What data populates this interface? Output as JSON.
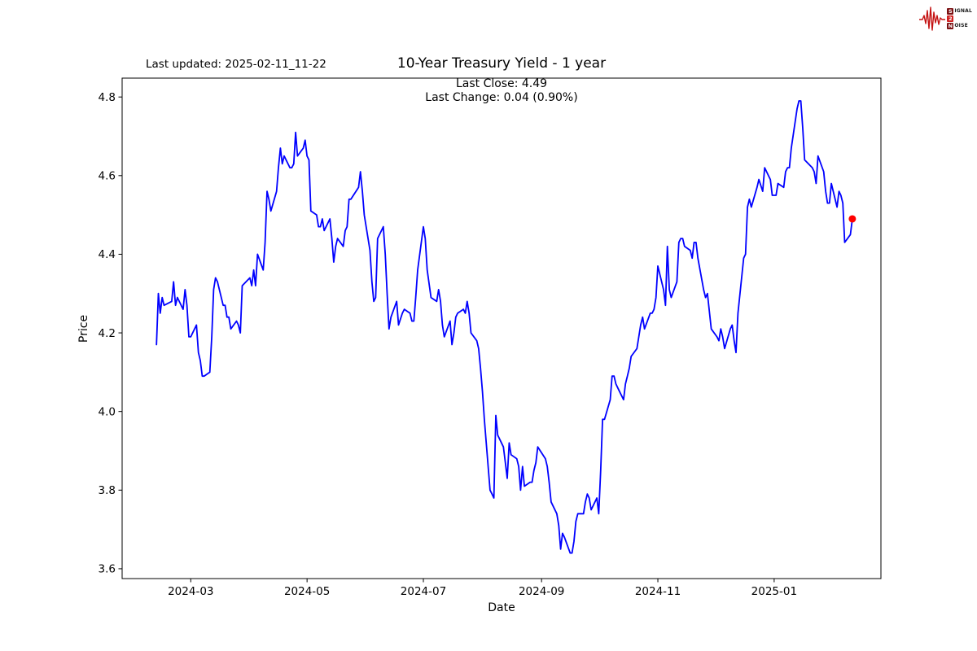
{
  "header": {
    "last_updated": "Last updated: 2025-02-11_11-22",
    "title": "10-Year Treasury Yield - 1 year",
    "subtitle_line1": "Last Close: 4.49",
    "subtitle_line2": "Last Change: 0.04 (0.90%)"
  },
  "logo": {
    "rows": [
      {
        "badge": "S",
        "rest": "IGNAL"
      },
      {
        "badge": "2",
        "rest": ""
      },
      {
        "badge": "N",
        "rest": "OISE"
      }
    ],
    "waveform_color": "#c41212",
    "badge_dark_color": "#7b1113",
    "badge_bright_color": "#cf1f1f"
  },
  "chart_data": {
    "type": "line",
    "title": "10-Year Treasury Yield - 1 year",
    "xlabel": "Date",
    "ylabel": "Price",
    "line_color": "#0000ff",
    "last_point_color": "#ff0000",
    "last_close": 4.49,
    "last_change": "0.04 (0.90%)",
    "grid": false,
    "legend": "none",
    "ylim": [
      3.575,
      4.848
    ],
    "yticks": [
      3.6,
      3.8,
      4.0,
      4.2,
      4.4,
      4.6,
      4.8
    ],
    "xlim": [
      "2024-01-25",
      "2025-02-26"
    ],
    "xticks": [
      {
        "date": "2024-03-01",
        "label": "2024-03"
      },
      {
        "date": "2024-05-01",
        "label": "2024-05"
      },
      {
        "date": "2024-07-01",
        "label": "2024-07"
      },
      {
        "date": "2024-09-01",
        "label": "2024-09"
      },
      {
        "date": "2024-11-01",
        "label": "2024-11"
      },
      {
        "date": "2025-01-01",
        "label": "2025-01"
      }
    ],
    "series": [
      [
        "2024-02-12",
        4.17
      ],
      [
        "2024-02-13",
        4.3
      ],
      [
        "2024-02-14",
        4.25
      ],
      [
        "2024-02-15",
        4.29
      ],
      [
        "2024-02-16",
        4.27
      ],
      [
        "2024-02-20",
        4.28
      ],
      [
        "2024-02-21",
        4.33
      ],
      [
        "2024-02-22",
        4.27
      ],
      [
        "2024-02-23",
        4.29
      ],
      [
        "2024-02-26",
        4.26
      ],
      [
        "2024-02-27",
        4.31
      ],
      [
        "2024-02-28",
        4.27
      ],
      [
        "2024-02-29",
        4.19
      ],
      [
        "2024-03-01",
        4.19
      ],
      [
        "2024-03-04",
        4.22
      ],
      [
        "2024-03-05",
        4.15
      ],
      [
        "2024-03-06",
        4.13
      ],
      [
        "2024-03-07",
        4.09
      ],
      [
        "2024-03-08",
        4.09
      ],
      [
        "2024-03-11",
        4.1
      ],
      [
        "2024-03-12",
        4.19
      ],
      [
        "2024-03-13",
        4.31
      ],
      [
        "2024-03-14",
        4.34
      ],
      [
        "2024-03-15",
        4.33
      ],
      [
        "2024-03-18",
        4.27
      ],
      [
        "2024-03-19",
        4.27
      ],
      [
        "2024-03-20",
        4.24
      ],
      [
        "2024-03-21",
        4.24
      ],
      [
        "2024-03-22",
        4.21
      ],
      [
        "2024-03-25",
        4.23
      ],
      [
        "2024-03-26",
        4.22
      ],
      [
        "2024-03-27",
        4.2
      ],
      [
        "2024-03-28",
        4.32
      ],
      [
        "2024-04-01",
        4.34
      ],
      [
        "2024-04-02",
        4.32
      ],
      [
        "2024-04-03",
        4.36
      ],
      [
        "2024-04-04",
        4.32
      ],
      [
        "2024-04-05",
        4.4
      ],
      [
        "2024-04-08",
        4.36
      ],
      [
        "2024-04-09",
        4.43
      ],
      [
        "2024-04-10",
        4.56
      ],
      [
        "2024-04-11",
        4.54
      ],
      [
        "2024-04-12",
        4.51
      ],
      [
        "2024-04-15",
        4.56
      ],
      [
        "2024-04-16",
        4.62
      ],
      [
        "2024-04-17",
        4.67
      ],
      [
        "2024-04-18",
        4.63
      ],
      [
        "2024-04-19",
        4.65
      ],
      [
        "2024-04-22",
        4.62
      ],
      [
        "2024-04-23",
        4.62
      ],
      [
        "2024-04-24",
        4.63
      ],
      [
        "2024-04-25",
        4.71
      ],
      [
        "2024-04-26",
        4.65
      ],
      [
        "2024-04-29",
        4.67
      ],
      [
        "2024-04-30",
        4.69
      ],
      [
        "2024-05-01",
        4.65
      ],
      [
        "2024-05-02",
        4.64
      ],
      [
        "2024-05-03",
        4.51
      ],
      [
        "2024-05-06",
        4.5
      ],
      [
        "2024-05-07",
        4.47
      ],
      [
        "2024-05-08",
        4.47
      ],
      [
        "2024-05-09",
        4.49
      ],
      [
        "2024-05-10",
        4.46
      ],
      [
        "2024-05-13",
        4.49
      ],
      [
        "2024-05-14",
        4.44
      ],
      [
        "2024-05-15",
        4.38
      ],
      [
        "2024-05-16",
        4.42
      ],
      [
        "2024-05-17",
        4.44
      ],
      [
        "2024-05-20",
        4.42
      ],
      [
        "2024-05-21",
        4.46
      ],
      [
        "2024-05-22",
        4.47
      ],
      [
        "2024-05-23",
        4.54
      ],
      [
        "2024-05-24",
        4.54
      ],
      [
        "2024-05-28",
        4.57
      ],
      [
        "2024-05-29",
        4.61
      ],
      [
        "2024-05-30",
        4.56
      ],
      [
        "2024-05-31",
        4.5
      ],
      [
        "2024-06-03",
        4.41
      ],
      [
        "2024-06-04",
        4.33
      ],
      [
        "2024-06-05",
        4.28
      ],
      [
        "2024-06-06",
        4.29
      ],
      [
        "2024-06-07",
        4.44
      ],
      [
        "2024-06-10",
        4.47
      ],
      [
        "2024-06-11",
        4.4
      ],
      [
        "2024-06-12",
        4.3
      ],
      [
        "2024-06-13",
        4.21
      ],
      [
        "2024-06-14",
        4.24
      ],
      [
        "2024-06-17",
        4.28
      ],
      [
        "2024-06-18",
        4.22
      ],
      [
        "2024-06-20",
        4.25
      ],
      [
        "2024-06-21",
        4.26
      ],
      [
        "2024-06-24",
        4.25
      ],
      [
        "2024-06-25",
        4.23
      ],
      [
        "2024-06-26",
        4.23
      ],
      [
        "2024-06-27",
        4.29
      ],
      [
        "2024-06-28",
        4.36
      ],
      [
        "2024-07-01",
        4.47
      ],
      [
        "2024-07-02",
        4.44
      ],
      [
        "2024-07-03",
        4.36
      ],
      [
        "2024-07-05",
        4.29
      ],
      [
        "2024-07-08",
        4.28
      ],
      [
        "2024-07-09",
        4.31
      ],
      [
        "2024-07-10",
        4.28
      ],
      [
        "2024-07-11",
        4.22
      ],
      [
        "2024-07-12",
        4.19
      ],
      [
        "2024-07-15",
        4.23
      ],
      [
        "2024-07-16",
        4.17
      ],
      [
        "2024-07-17",
        4.2
      ],
      [
        "2024-07-18",
        4.24
      ],
      [
        "2024-07-19",
        4.25
      ],
      [
        "2024-07-22",
        4.26
      ],
      [
        "2024-07-23",
        4.25
      ],
      [
        "2024-07-24",
        4.28
      ],
      [
        "2024-07-25",
        4.25
      ],
      [
        "2024-07-26",
        4.2
      ],
      [
        "2024-07-29",
        4.18
      ],
      [
        "2024-07-30",
        4.16
      ],
      [
        "2024-07-31",
        4.11
      ],
      [
        "2024-08-01",
        4.05
      ],
      [
        "2024-08-02",
        3.98
      ],
      [
        "2024-08-05",
        3.8
      ],
      [
        "2024-08-06",
        3.79
      ],
      [
        "2024-08-07",
        3.78
      ],
      [
        "2024-08-08",
        3.99
      ],
      [
        "2024-08-09",
        3.94
      ],
      [
        "2024-08-12",
        3.91
      ],
      [
        "2024-08-13",
        3.87
      ],
      [
        "2024-08-14",
        3.83
      ],
      [
        "2024-08-15",
        3.92
      ],
      [
        "2024-08-16",
        3.89
      ],
      [
        "2024-08-19",
        3.88
      ],
      [
        "2024-08-20",
        3.86
      ],
      [
        "2024-08-21",
        3.8
      ],
      [
        "2024-08-22",
        3.86
      ],
      [
        "2024-08-23",
        3.81
      ],
      [
        "2024-08-26",
        3.82
      ],
      [
        "2024-08-27",
        3.82
      ],
      [
        "2024-08-28",
        3.85
      ],
      [
        "2024-08-29",
        3.87
      ],
      [
        "2024-08-30",
        3.91
      ],
      [
        "2024-09-03",
        3.88
      ],
      [
        "2024-09-04",
        3.86
      ],
      [
        "2024-09-05",
        3.82
      ],
      [
        "2024-09-06",
        3.77
      ],
      [
        "2024-09-09",
        3.74
      ],
      [
        "2024-09-10",
        3.71
      ],
      [
        "2024-09-11",
        3.65
      ],
      [
        "2024-09-12",
        3.69
      ],
      [
        "2024-09-13",
        3.68
      ],
      [
        "2024-09-16",
        3.64
      ],
      [
        "2024-09-17",
        3.64
      ],
      [
        "2024-09-18",
        3.67
      ],
      [
        "2024-09-19",
        3.72
      ],
      [
        "2024-09-20",
        3.74
      ],
      [
        "2024-09-23",
        3.74
      ],
      [
        "2024-09-24",
        3.77
      ],
      [
        "2024-09-25",
        3.79
      ],
      [
        "2024-09-26",
        3.78
      ],
      [
        "2024-09-27",
        3.75
      ],
      [
        "2024-09-30",
        3.78
      ],
      [
        "2024-10-01",
        3.74
      ],
      [
        "2024-10-02",
        3.85
      ],
      [
        "2024-10-03",
        3.98
      ],
      [
        "2024-10-04",
        3.98
      ],
      [
        "2024-10-07",
        4.03
      ],
      [
        "2024-10-08",
        4.09
      ],
      [
        "2024-10-09",
        4.09
      ],
      [
        "2024-10-10",
        4.07
      ],
      [
        "2024-10-11",
        4.06
      ],
      [
        "2024-10-14",
        4.03
      ],
      [
        "2024-10-15",
        4.07
      ],
      [
        "2024-10-16",
        4.09
      ],
      [
        "2024-10-17",
        4.11
      ],
      [
        "2024-10-18",
        4.14
      ],
      [
        "2024-10-21",
        4.16
      ],
      [
        "2024-10-22",
        4.19
      ],
      [
        "2024-10-23",
        4.22
      ],
      [
        "2024-10-24",
        4.24
      ],
      [
        "2024-10-25",
        4.21
      ],
      [
        "2024-10-28",
        4.25
      ],
      [
        "2024-10-29",
        4.25
      ],
      [
        "2024-10-30",
        4.26
      ],
      [
        "2024-10-31",
        4.29
      ],
      [
        "2024-11-01",
        4.37
      ],
      [
        "2024-11-04",
        4.31
      ],
      [
        "2024-11-05",
        4.27
      ],
      [
        "2024-11-06",
        4.42
      ],
      [
        "2024-11-07",
        4.31
      ],
      [
        "2024-11-08",
        4.29
      ],
      [
        "2024-11-11",
        4.33
      ],
      [
        "2024-11-12",
        4.43
      ],
      [
        "2024-11-13",
        4.44
      ],
      [
        "2024-11-14",
        4.44
      ],
      [
        "2024-11-15",
        4.42
      ],
      [
        "2024-11-18",
        4.41
      ],
      [
        "2024-11-19",
        4.39
      ],
      [
        "2024-11-20",
        4.43
      ],
      [
        "2024-11-21",
        4.43
      ],
      [
        "2024-11-22",
        4.39
      ],
      [
        "2024-11-25",
        4.31
      ],
      [
        "2024-11-26",
        4.29
      ],
      [
        "2024-11-27",
        4.3
      ],
      [
        "2024-11-29",
        4.21
      ],
      [
        "2024-12-02",
        4.19
      ],
      [
        "2024-12-03",
        4.18
      ],
      [
        "2024-12-04",
        4.21
      ],
      [
        "2024-12-05",
        4.19
      ],
      [
        "2024-12-06",
        4.16
      ],
      [
        "2024-12-09",
        4.21
      ],
      [
        "2024-12-10",
        4.22
      ],
      [
        "2024-12-11",
        4.18
      ],
      [
        "2024-12-12",
        4.15
      ],
      [
        "2024-12-13",
        4.25
      ],
      [
        "2024-12-16",
        4.39
      ],
      [
        "2024-12-17",
        4.4
      ],
      [
        "2024-12-18",
        4.52
      ],
      [
        "2024-12-19",
        4.54
      ],
      [
        "2024-12-20",
        4.52
      ],
      [
        "2024-12-23",
        4.57
      ],
      [
        "2024-12-24",
        4.59
      ],
      [
        "2024-12-26",
        4.56
      ],
      [
        "2024-12-27",
        4.62
      ],
      [
        "2024-12-30",
        4.59
      ],
      [
        "2024-12-31",
        4.55
      ],
      [
        "2025-01-02",
        4.55
      ],
      [
        "2025-01-03",
        4.58
      ],
      [
        "2025-01-06",
        4.57
      ],
      [
        "2025-01-07",
        4.61
      ],
      [
        "2025-01-08",
        4.62
      ],
      [
        "2025-01-09",
        4.62
      ],
      [
        "2025-01-10",
        4.67
      ],
      [
        "2025-01-13",
        4.77
      ],
      [
        "2025-01-14",
        4.79
      ],
      [
        "2025-01-15",
        4.79
      ],
      [
        "2025-01-16",
        4.72
      ],
      [
        "2025-01-17",
        4.64
      ],
      [
        "2025-01-21",
        4.62
      ],
      [
        "2025-01-22",
        4.61
      ],
      [
        "2025-01-23",
        4.58
      ],
      [
        "2025-01-24",
        4.65
      ],
      [
        "2025-01-27",
        4.61
      ],
      [
        "2025-01-28",
        4.56
      ],
      [
        "2025-01-29",
        4.53
      ],
      [
        "2025-01-30",
        4.53
      ],
      [
        "2025-01-31",
        4.58
      ],
      [
        "2025-02-03",
        4.52
      ],
      [
        "2025-02-04",
        4.56
      ],
      [
        "2025-02-05",
        4.55
      ],
      [
        "2025-02-06",
        4.53
      ],
      [
        "2025-02-07",
        4.43
      ],
      [
        "2025-02-10",
        4.45
      ],
      [
        "2025-02-11",
        4.49
      ]
    ]
  }
}
